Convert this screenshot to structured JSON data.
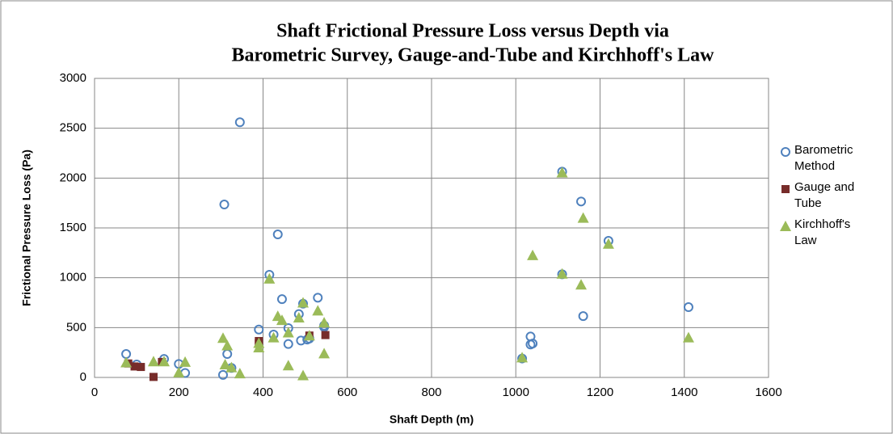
{
  "chart_data": {
    "type": "scatter",
    "title": [
      "Shaft Frictional Pressure Loss versus Depth via",
      "Barometric Survey, Gauge-and-Tube and Kirchhoff's Law"
    ],
    "xlabel": "Shaft Depth (m)",
    "ylabel": "Frictional Pressure Loss (Pa)",
    "xlim": [
      0,
      1600
    ],
    "xticks": [
      0,
      200,
      400,
      600,
      800,
      1000,
      1200,
      1400,
      1600
    ],
    "ylim": [
      0,
      3000
    ],
    "yticks": [
      0,
      500,
      1000,
      1500,
      2000,
      2500,
      3000
    ],
    "grid": true,
    "legend": "right",
    "series": [
      {
        "name": "Barometric Method",
        "color": "#4f81bd",
        "marker": "circle",
        "x": [
          75,
          100,
          165,
          200,
          215,
          305,
          308,
          315,
          325,
          345,
          390,
          415,
          425,
          435,
          445,
          460,
          460,
          485,
          490,
          495,
          505,
          510,
          530,
          545,
          545,
          1015,
          1035,
          1035,
          1040,
          1110,
          1110,
          1155,
          1160,
          1220,
          1410
        ],
        "values": [
          235,
          130,
          185,
          135,
          45,
          25,
          1735,
          235,
          95,
          2560,
          480,
          1030,
          430,
          1435,
          785,
          335,
          495,
          635,
          370,
          740,
          380,
          390,
          800,
          520,
          505,
          190,
          410,
          330,
          340,
          2065,
          1035,
          1765,
          615,
          1370,
          705
        ]
      },
      {
        "name": "Gauge and Tube",
        "color": "#772c2a",
        "marker": "square",
        "x": [
          80,
          95,
          110,
          140,
          160,
          390,
          390,
          510,
          548
        ],
        "values": [
          140,
          110,
          105,
          5,
          155,
          340,
          365,
          420,
          425
        ]
      },
      {
        "name": "Kirchhoff's Law",
        "color": "#9bbb59",
        "marker": "triangle",
        "x": [
          75,
          140,
          165,
          200,
          215,
          305,
          310,
          315,
          325,
          345,
          390,
          390,
          415,
          425,
          435,
          445,
          460,
          460,
          485,
          495,
          495,
          510,
          530,
          545,
          545,
          1015,
          1040,
          1110,
          1110,
          1155,
          1160,
          1220,
          1410
        ],
        "values": [
          150,
          160,
          160,
          50,
          155,
          395,
          130,
          320,
          100,
          40,
          300,
          345,
          990,
          400,
          615,
          575,
          450,
          120,
          600,
          20,
          750,
          420,
          670,
          240,
          550,
          200,
          1225,
          1040,
          2055,
          930,
          1600,
          1340,
          400
        ]
      }
    ]
  }
}
